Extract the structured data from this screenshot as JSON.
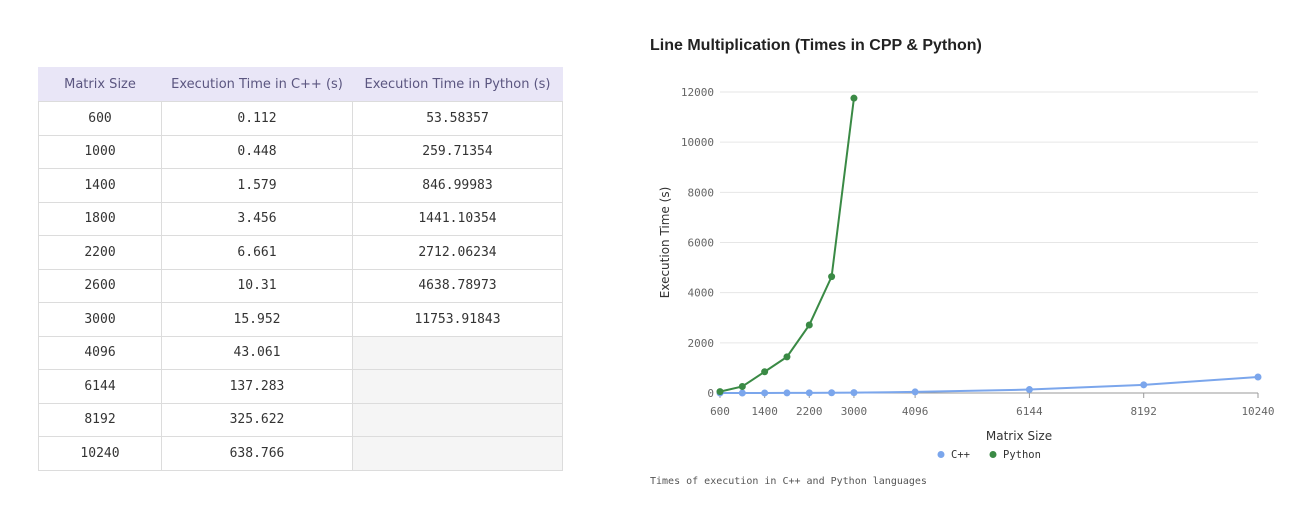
{
  "table": {
    "headers": [
      "Matrix Size",
      "Execution Time in C++ (s)",
      "Execution Time in Python (s)"
    ],
    "rows": [
      [
        "600",
        "0.112",
        "53.58357"
      ],
      [
        "1000",
        "0.448",
        "259.71354"
      ],
      [
        "1400",
        "1.579",
        "846.99983"
      ],
      [
        "1800",
        "3.456",
        "1441.10354"
      ],
      [
        "2200",
        "6.661",
        "2712.06234"
      ],
      [
        "2600",
        "10.31",
        "4638.78973"
      ],
      [
        "3000",
        "15.952",
        "11753.91843"
      ],
      [
        "4096",
        "43.061",
        ""
      ],
      [
        "6144",
        "137.283",
        ""
      ],
      [
        "8192",
        "325.622",
        ""
      ],
      [
        "10240",
        "638.766",
        ""
      ]
    ]
  },
  "chart_data": {
    "type": "line",
    "title": "Line Multiplication (Times in CPP & Python)",
    "xlabel": "Matrix Size",
    "ylabel": "Execution Time (s)",
    "caption": "Times of execution in C++ and Python languages",
    "xlim": [
      600,
      10240
    ],
    "ylim": [
      0,
      12000
    ],
    "x_ticks": [
      600,
      1400,
      2200,
      3000,
      4096,
      6144,
      8192,
      10240
    ],
    "y_ticks": [
      0,
      2000,
      4000,
      6000,
      8000,
      10000,
      12000
    ],
    "grid": "horizontal",
    "legend_position": "bottom",
    "series": [
      {
        "name": "C++",
        "color": "#7ba6ec",
        "x": [
          600,
          1000,
          1400,
          1800,
          2200,
          2600,
          3000,
          4096,
          6144,
          8192,
          10240
        ],
        "y": [
          0.112,
          0.448,
          1.579,
          3.456,
          6.661,
          10.31,
          15.952,
          43.061,
          137.283,
          325.622,
          638.766
        ]
      },
      {
        "name": "Python",
        "color": "#3a8a45",
        "x": [
          600,
          1000,
          1400,
          1800,
          2200,
          2600,
          3000
        ],
        "y": [
          53.58357,
          259.71354,
          846.99983,
          1441.10354,
          2712.06234,
          4638.78973,
          11753.91843
        ]
      }
    ]
  }
}
